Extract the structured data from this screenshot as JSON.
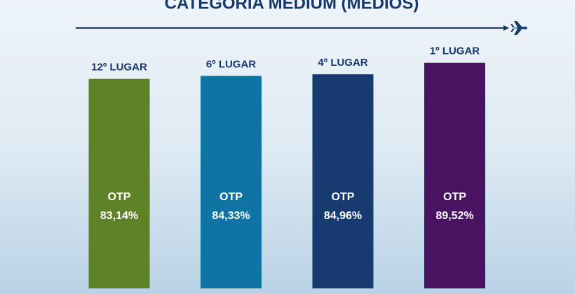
{
  "chart_data": {
    "type": "bar",
    "title": "CATEGORIA MEDIUM (MÉDIOS)",
    "categories": [
      "12º LUGAR",
      "6º LUGAR",
      "4º LUGAR",
      "1º LUGAR"
    ],
    "bar_label": "OTP",
    "values": [
      83.14,
      84.33,
      84.96,
      89.52
    ],
    "value_labels": [
      "83,14%",
      "84,33%",
      "84,96%",
      "89,52%"
    ],
    "colors": [
      "#5e8228",
      "#0f74a3",
      "#173a70",
      "#4a1362"
    ],
    "ylim": [
      0,
      100
    ]
  }
}
